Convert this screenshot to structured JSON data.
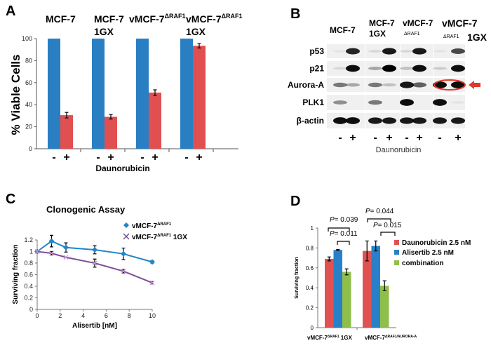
{
  "panels": {
    "a": "A",
    "b": "B",
    "c": "C",
    "d": "D"
  },
  "colors": {
    "blue": "#2a7fc3",
    "red": "#e05050",
    "c_blue": "#1f86c8",
    "c_purple": "#7e4f9a",
    "d_red": "#e05252",
    "d_blue": "#2a80c8",
    "d_green": "#8fbf4a",
    "ellipse": "#e03a2a"
  },
  "panel_a_headers": [
    {
      "main": "MCF-7",
      "sup": "",
      "line2": ""
    },
    {
      "main": "MCF-7",
      "sup": "",
      "line2": "1GX"
    },
    {
      "main": "vMCF-7",
      "sup": "ΔRAF1",
      "line2": ""
    },
    {
      "main": "vMCF-7",
      "sup": "ΔRAF1",
      "line2": "1GX"
    }
  ],
  "blot": {
    "headers": [
      {
        "main": "MCF-7",
        "sub": "",
        "extra": ""
      },
      {
        "main": "MCF-7",
        "sub": "1GX",
        "extra": ""
      },
      {
        "main": "vMCF-7",
        "sub": "ΔRAF1",
        "extra": ""
      },
      {
        "main": "vMCF-7",
        "sub": "ΔRAF1",
        "extra": "1GX"
      }
    ],
    "treatment_label": "Daunorubicin",
    "lane_signs": [
      "-",
      "+",
      "-",
      "+",
      "-",
      "+",
      "-",
      "+"
    ],
    "rows": [
      {
        "label": "p53",
        "bands": [
          0.05,
          0.85,
          0.1,
          0.9,
          0.1,
          0.9,
          0.05,
          0.7
        ]
      },
      {
        "label": "p21",
        "bands": [
          0.1,
          0.95,
          0.3,
          1,
          0.2,
          0.95,
          0.15,
          0.95
        ]
      },
      {
        "label": "Aurora-A",
        "bands": [
          0.5,
          0.3,
          0.5,
          0.2,
          0.9,
          0.6,
          0.95,
          0.95
        ]
      },
      {
        "label": "PLK1",
        "bands": [
          0.4,
          0,
          0.5,
          0,
          0.95,
          0,
          0.95,
          0.05
        ]
      },
      {
        "label": "β-actin",
        "bands": [
          0.95,
          0.95,
          0.9,
          0.9,
          0.9,
          0.9,
          0.9,
          0.9
        ]
      }
    ],
    "highlighted_row": "Aurora-A"
  },
  "chart_data": [
    {
      "panel": "A",
      "type": "bar",
      "categories": [
        "MCF-7",
        "MCF-7 1GX",
        "vMCF-7ΔRAF1",
        "vMCF-7ΔRAF1 1GX"
      ],
      "series": [
        {
          "name": "-",
          "values": [
            100,
            100,
            100,
            100
          ],
          "errors": [
            0,
            0,
            0,
            0
          ]
        },
        {
          "name": "+",
          "values": [
            30.5,
            29,
            51,
            93.5
          ],
          "errors": [
            2.5,
            2,
            2.5,
            2
          ]
        }
      ],
      "ylabel": "% Viable Cells",
      "xlabel": "Daunorubicin",
      "ylim": [
        0,
        100
      ],
      "yticks": [
        "0",
        "20",
        "40",
        "60",
        "80",
        "100"
      ]
    },
    {
      "panel": "C",
      "type": "line",
      "title": "Clonogenic Assay",
      "x": [
        0,
        1.25,
        2.5,
        5,
        7.5,
        10
      ],
      "series": [
        {
          "name": "vMCF-7",
          "name_sup": "ΔRAF1",
          "name_suffix": "",
          "marker": "diamond",
          "values": [
            1,
            1.18,
            1.07,
            1.03,
            0.96,
            0.82
          ],
          "errors": [
            0,
            0.1,
            0.08,
            0.07,
            0.1,
            0.02
          ]
        },
        {
          "name": "vMCF-7",
          "name_sup": "ΔRAF1",
          "name_suffix": " 1GX",
          "marker": "x",
          "values": [
            1,
            0.97,
            0.9,
            0.8,
            0.66,
            0.46
          ],
          "errors": [
            0,
            0.03,
            0,
            0.07,
            0.03,
            0.02
          ]
        }
      ],
      "xlabel": "Alisertib [nM]",
      "ylabel": "Surviving fraction",
      "xlim": [
        0,
        10
      ],
      "ylim": [
        0,
        1.2
      ],
      "xticks": [
        "0",
        "2",
        "4",
        "6",
        "8",
        "10"
      ],
      "yticks": [
        "0",
        "0.2",
        "0.4",
        "0.6",
        "0.8",
        "1",
        "1.2"
      ],
      "legend": "top-right"
    },
    {
      "panel": "D",
      "type": "bar",
      "categories": [
        {
          "main": "vMCF-7",
          "sup": "ΔRAF1",
          "suffix": " 1GX"
        },
        {
          "main": "vMCF-7",
          "sup": "ΔRAF1/AURORA-A",
          "suffix": ""
        }
      ],
      "series": [
        {
          "name": "Daunorubicin 2.5 nM",
          "values": [
            0.69,
            0.77
          ],
          "errors": [
            0.02,
            0.1
          ]
        },
        {
          "name": "Alisertib 2.5 nM",
          "values": [
            0.78,
            0.82
          ],
          "errors": [
            0.005,
            0.05
          ]
        },
        {
          "name": "combination",
          "values": [
            0.56,
            0.42
          ],
          "errors": [
            0.03,
            0.05
          ]
        }
      ],
      "ylabel": "Surviving fraction",
      "ylim": [
        0,
        1
      ],
      "yticks": [
        "0",
        "0.2",
        "0.4",
        "0.6",
        "0.8",
        "1"
      ],
      "annotations": [
        {
          "p": "P",
          "text": "= 0.039"
        },
        {
          "p": "P",
          "text": "= 0.011"
        },
        {
          "p": "P",
          "text": "= 0.044"
        },
        {
          "p": "P",
          "text": "= 0.015"
        }
      ],
      "legend": "right"
    }
  ]
}
